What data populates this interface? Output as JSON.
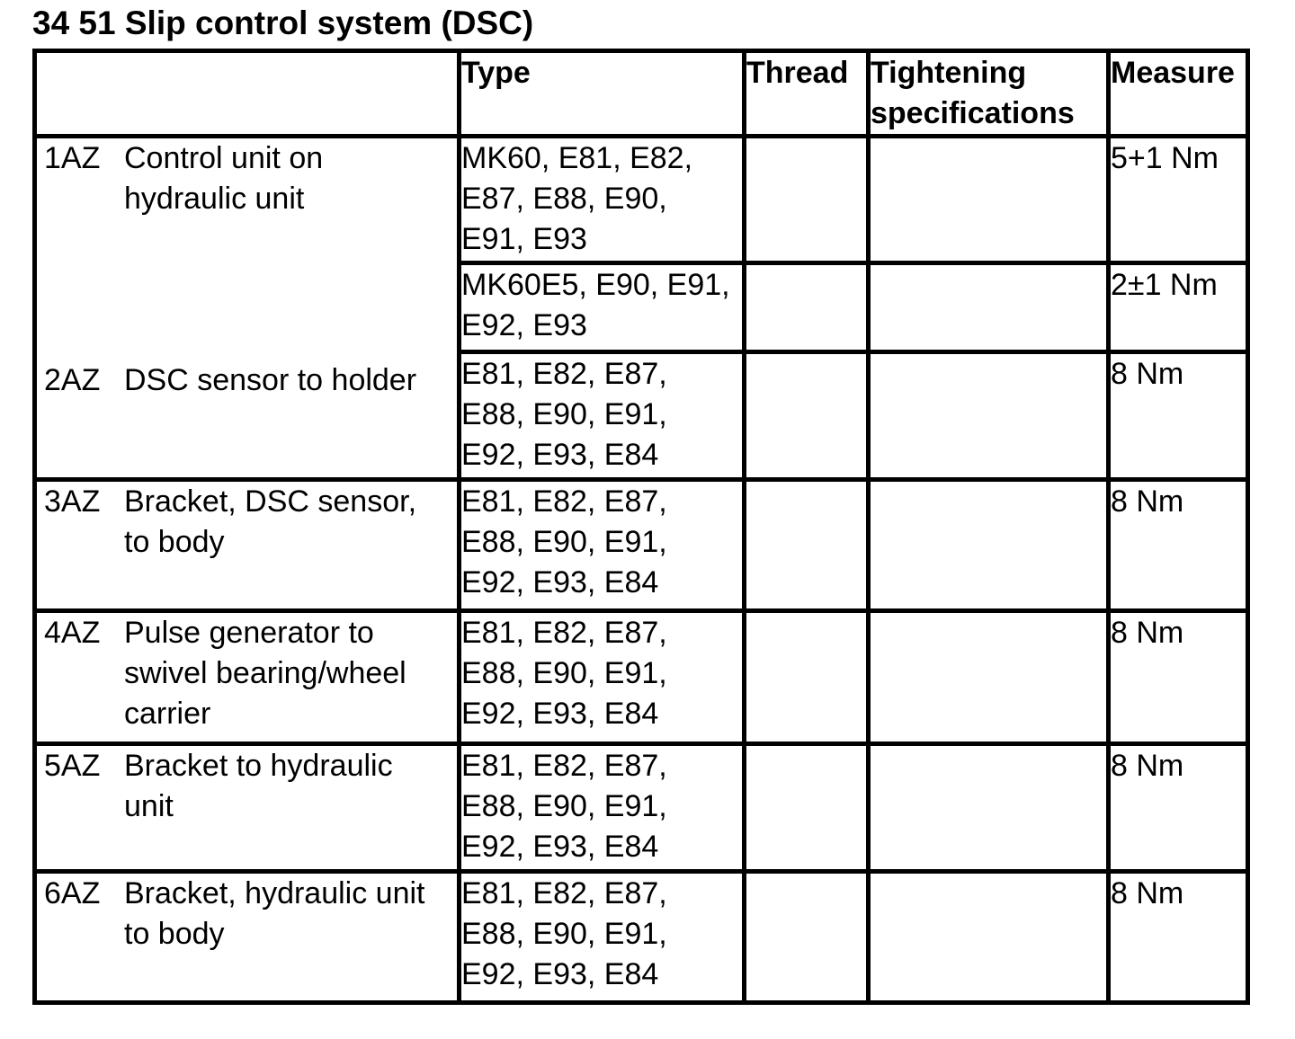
{
  "page": {
    "title": "34 51 Slip control system (DSC)"
  },
  "colors": {
    "text": "#000000",
    "border": "#000000",
    "background": "#ffffff"
  },
  "table": {
    "headers": {
      "item": "",
      "type": "Type",
      "thread": "Thread",
      "tightening": "Tightening\nspecifications",
      "measure": "Measure"
    },
    "group1": {
      "entry1": {
        "id": "1AZ",
        "label": "Control unit on\nhydraulic unit"
      },
      "entry2": {
        "id": "2AZ",
        "label": "DSC sensor to holder"
      },
      "subrows": [
        {
          "type": "MK60, E81, E82,\nE87, E88, E90,\nE91, E93",
          "thread": "",
          "tightening": "",
          "measure": "5+1 Nm"
        },
        {
          "type": "MK60E5, E90, E91,\nE92, E93",
          "thread": "",
          "tightening": "",
          "measure": "2±1 Nm"
        },
        {
          "type": "E81, E82, E87,\nE88, E90, E91,\nE92, E93, E84",
          "thread": "",
          "tightening": "",
          "measure": "8 Nm"
        }
      ]
    },
    "rows": [
      {
        "id": "3AZ",
        "label": "Bracket, DSC sensor,\nto body",
        "type": "E81, E82, E87,\nE88, E90, E91,\nE92, E93, E84",
        "thread": "",
        "tightening": "",
        "measure": "8 Nm"
      },
      {
        "id": "4AZ",
        "label": "Pulse generator to\nswivel bearing/wheel\ncarrier",
        "type": "E81, E82, E87,\nE88, E90, E91,\nE92, E93, E84",
        "thread": "",
        "tightening": "",
        "measure": "8 Nm"
      },
      {
        "id": "5AZ",
        "label": "Bracket to hydraulic\nunit",
        "type": "E81, E82, E87,\nE88, E90, E91,\nE92, E93, E84",
        "thread": "",
        "tightening": "",
        "measure": "8 Nm"
      },
      {
        "id": "6AZ",
        "label": "Bracket, hydraulic unit\nto body",
        "type": "E81, E82, E87,\nE88, E90, E91,\nE92, E93, E84",
        "thread": "",
        "tightening": "",
        "measure": "8 Nm"
      }
    ]
  }
}
